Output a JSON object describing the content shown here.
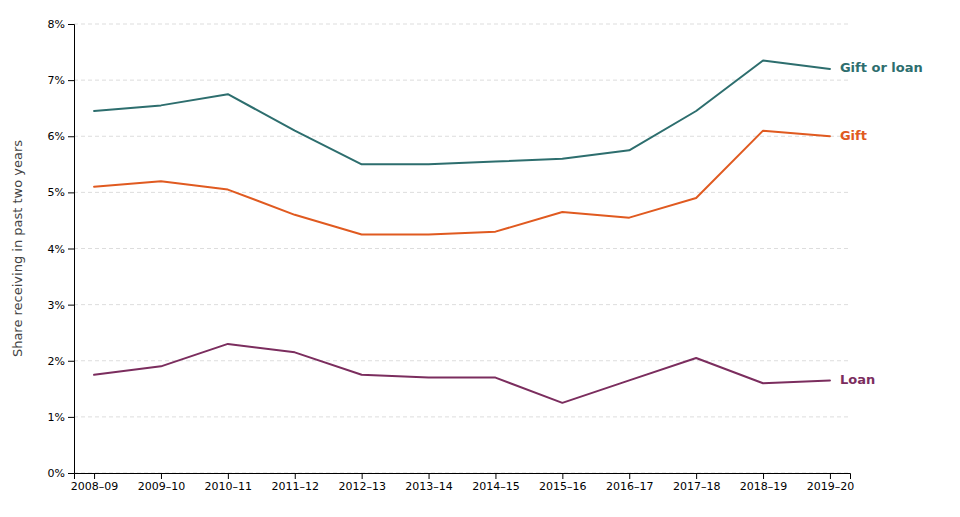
{
  "chart_data": {
    "type": "line",
    "ylabel": "Share receiving in past two years",
    "categories": [
      "2008–09",
      "2009–10",
      "2010–11",
      "2011–12",
      "2012–13",
      "2013–14",
      "2014–15",
      "2015–16",
      "2016–17",
      "2017–18",
      "2018–19",
      "2019–20"
    ],
    "series": [
      {
        "name": "Gift or loan",
        "color": "#2d6e6e",
        "values": [
          6.45,
          6.55,
          6.75,
          6.1,
          5.5,
          5.5,
          5.55,
          5.6,
          5.75,
          6.45,
          7.35,
          7.2
        ]
      },
      {
        "name": "Gift",
        "color": "#e05a20",
        "values": [
          5.1,
          5.2,
          5.05,
          4.6,
          4.25,
          4.25,
          4.3,
          4.65,
          4.55,
          4.9,
          6.1,
          6.0
        ]
      },
      {
        "name": "Loan",
        "color": "#7b2d5e",
        "values": [
          1.75,
          1.9,
          2.3,
          2.15,
          1.75,
          1.7,
          1.7,
          1.25,
          1.65,
          2.05,
          1.6,
          1.65
        ]
      }
    ],
    "ylim": [
      0,
      8
    ],
    "yticks": [
      {
        "value": 0,
        "label": "0%"
      },
      {
        "value": 1,
        "label": "1%"
      },
      {
        "value": 2,
        "label": "2%"
      },
      {
        "value": 3,
        "label": "3%"
      },
      {
        "value": 4,
        "label": "4%"
      },
      {
        "value": 5,
        "label": "5%"
      },
      {
        "value": 6,
        "label": "6%"
      },
      {
        "value": 7,
        "label": "7%"
      },
      {
        "value": 8,
        "label": "8%"
      }
    ],
    "grid": true
  }
}
